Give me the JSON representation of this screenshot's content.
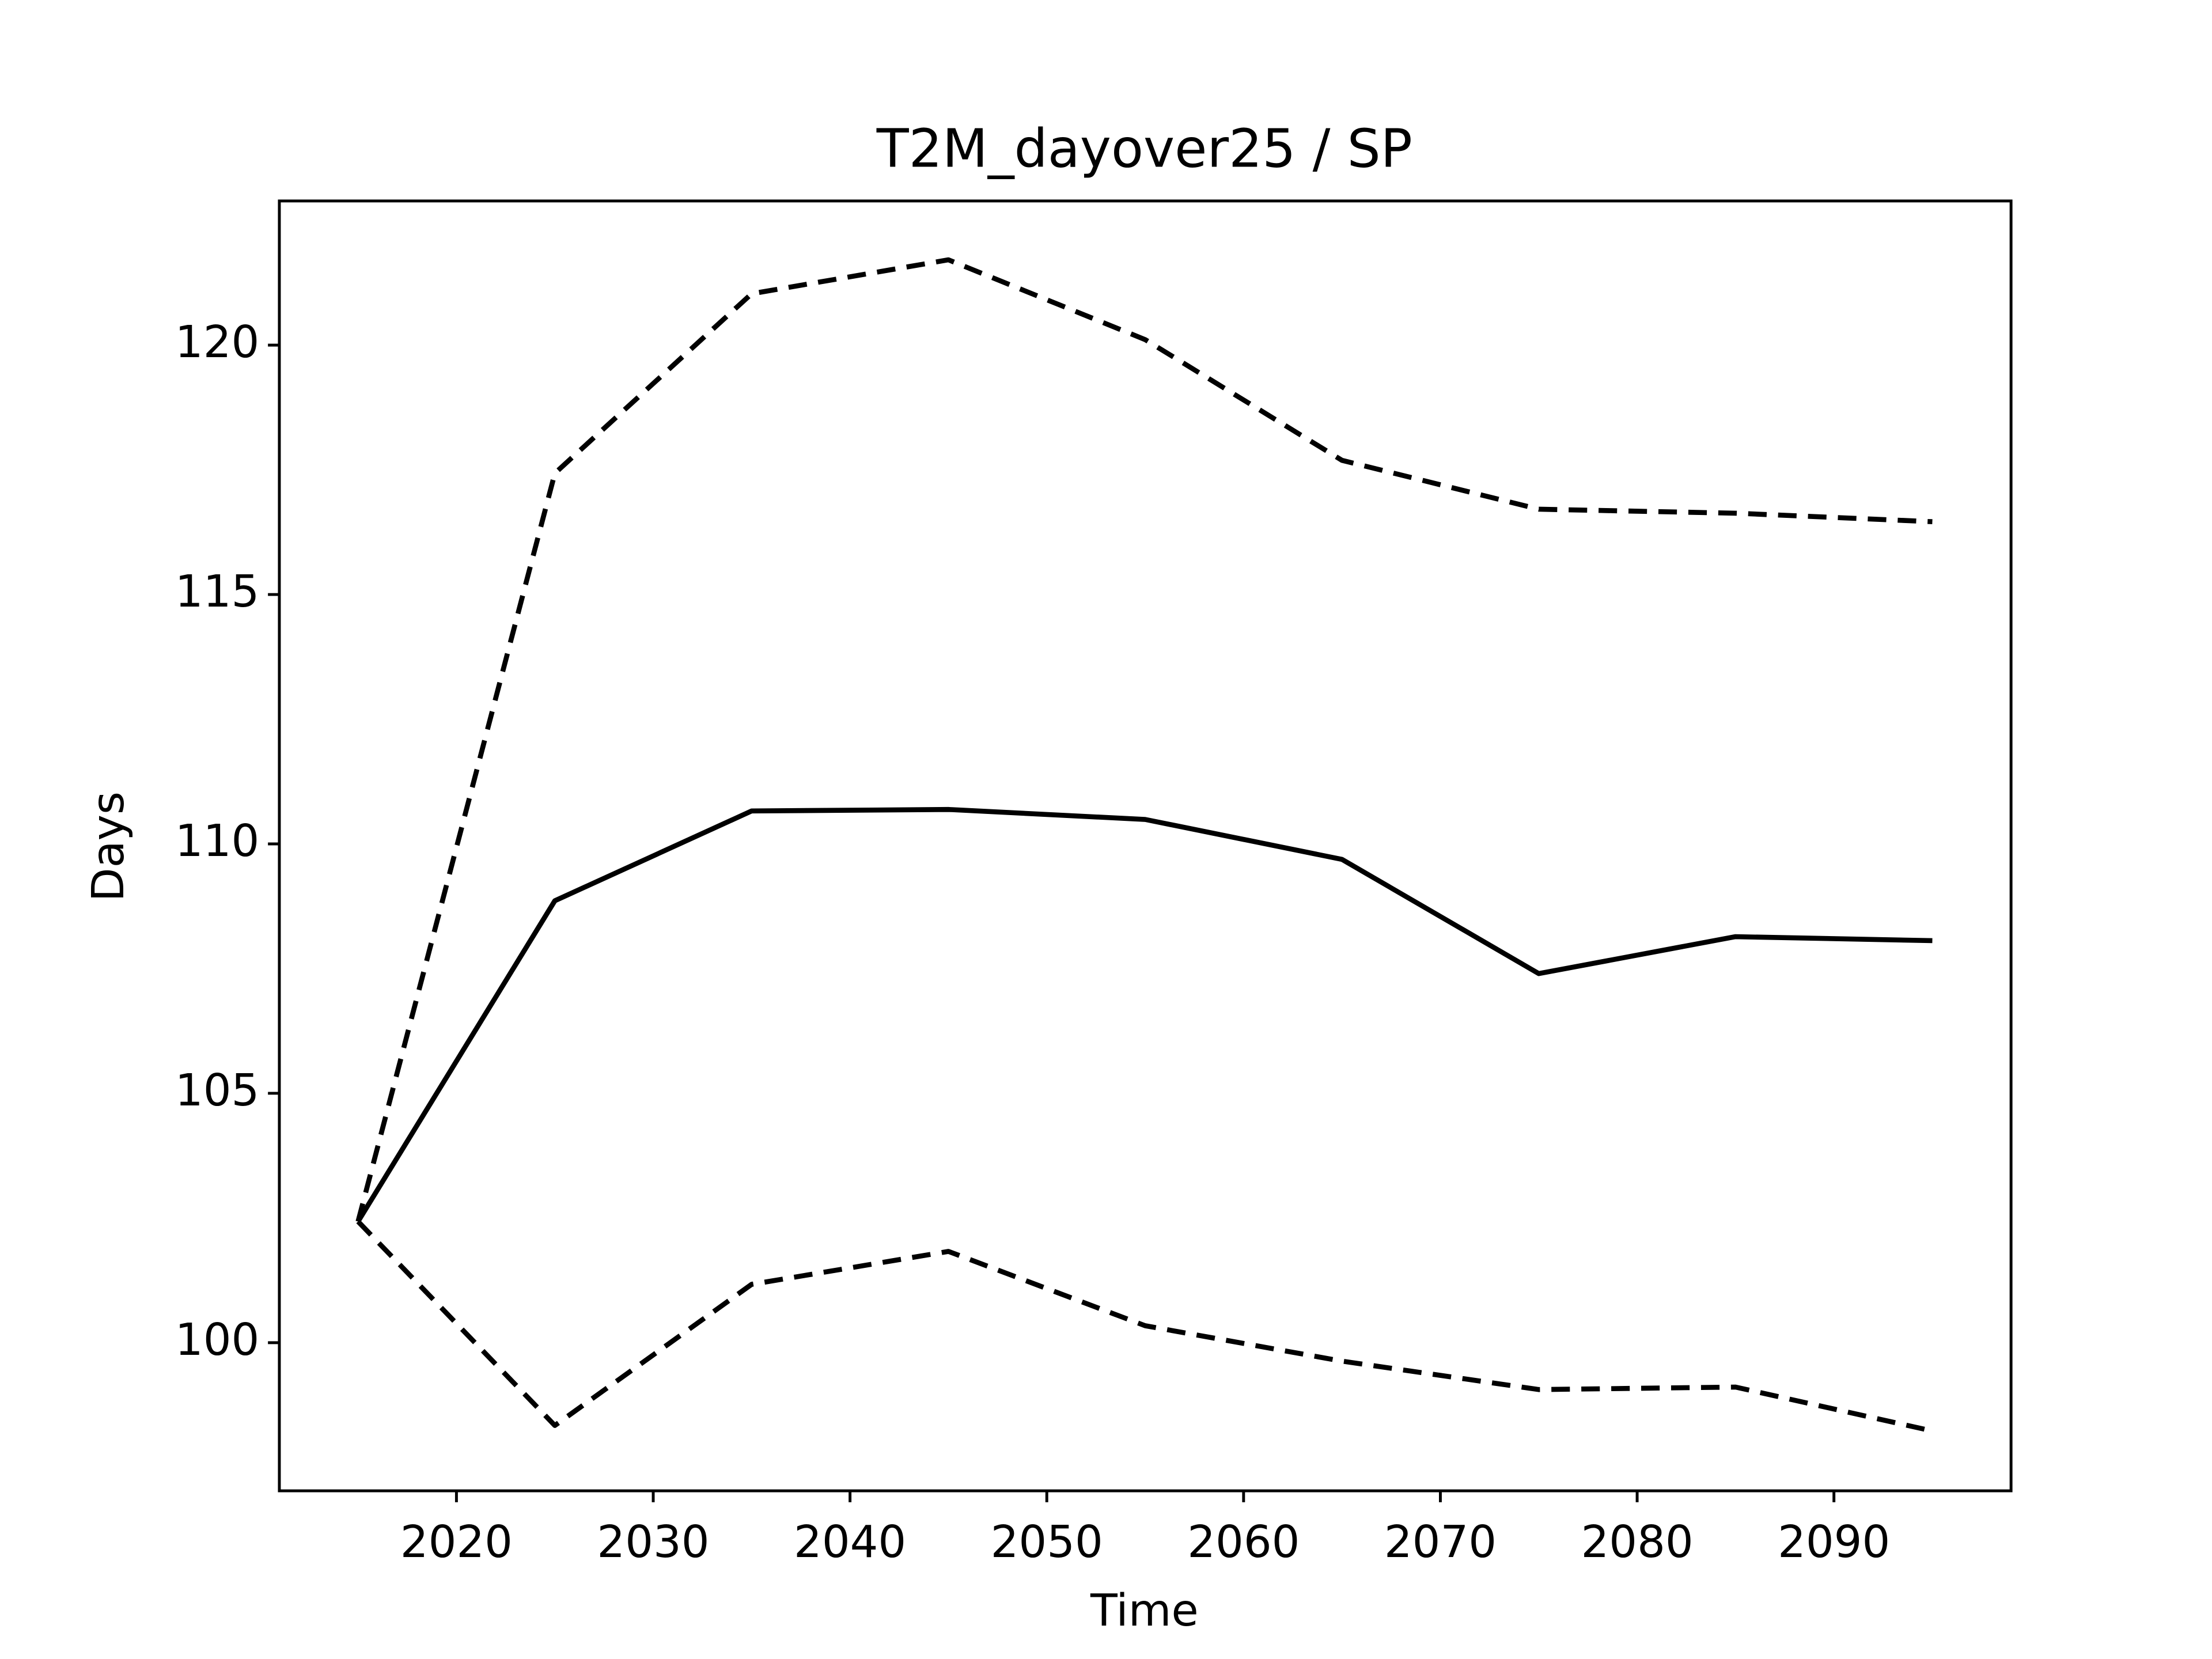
{
  "chart_data": {
    "type": "line",
    "title": "T2M_dayover25 / SP",
    "x_label": "Time",
    "y_label": "Days",
    "x": [
      2015,
      2025,
      2035,
      2045,
      2055,
      2065,
      2075,
      2085,
      2095
    ],
    "series": [
      {
        "color": "#000000",
        "linestyle": "solid",
        "values": [
          102.43,
          108.86,
          110.66,
          110.69,
          110.49,
          109.69,
          107.4,
          108.14,
          108.06
        ]
      },
      {
        "color": "#000000",
        "linestyle": "dashed",
        "values": [
          102.43,
          117.43,
          121.03,
          121.71,
          120.11,
          117.69,
          116.71,
          116.63,
          116.46
        ]
      },
      {
        "color": "#000000",
        "linestyle": "dashed",
        "values": [
          102.43,
          98.34,
          101.17,
          101.83,
          100.34,
          99.63,
          99.06,
          99.11,
          98.23
        ]
      }
    ],
    "xlim": [
      2011,
      2099
    ],
    "xticks": [
      2020,
      2030,
      2040,
      2050,
      2060,
      2070,
      2080,
      2090
    ],
    "ylim": [
      97.03,
      122.89
    ],
    "yticks": [
      100,
      105,
      110,
      115,
      120
    ],
    "grid": false
  }
}
